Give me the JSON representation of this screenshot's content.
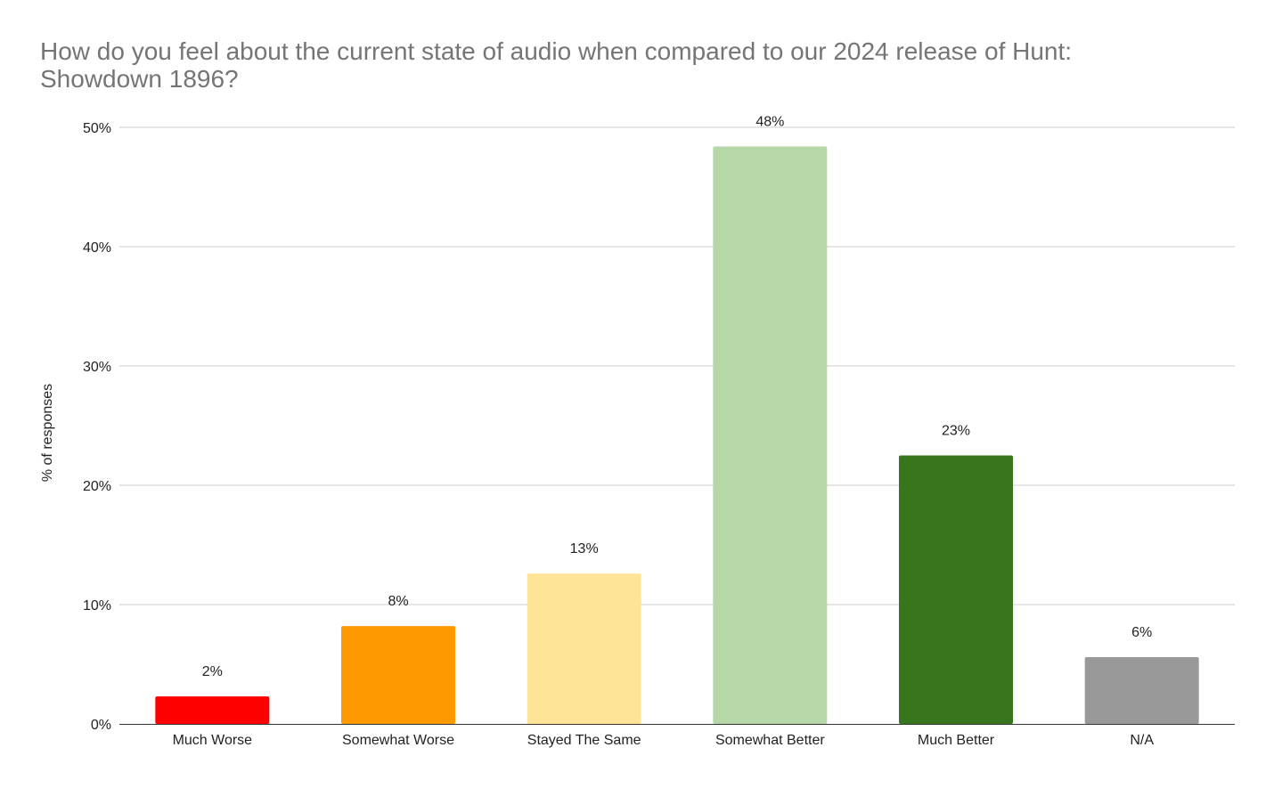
{
  "chart_data": {
    "type": "bar",
    "title": "How do you feel about the current state of audio when compared to our 2024 release of Hunt: Showdown 1896?",
    "xlabel": "",
    "ylabel": "% of responses",
    "ylim": [
      0,
      50
    ],
    "y_ticks": [
      "0%",
      "10%",
      "20%",
      "30%",
      "40%",
      "50%"
    ],
    "y_tick_values": [
      0,
      10,
      20,
      30,
      40,
      50
    ],
    "grid": true,
    "legend": "none",
    "categories": [
      "Much Worse",
      "Somewhat Worse",
      "Stayed The Same",
      "Somewhat Better",
      "Much Better",
      "N/A"
    ],
    "values": [
      2.3,
      8.2,
      12.6,
      48.4,
      22.5,
      5.6
    ],
    "data_labels": [
      "2%",
      "8%",
      "13%",
      "48%",
      "23%",
      "6%"
    ],
    "colors": [
      "#ff0000",
      "#ff9900",
      "#fde499",
      "#b6d7a8",
      "#38761d",
      "#999999"
    ]
  }
}
